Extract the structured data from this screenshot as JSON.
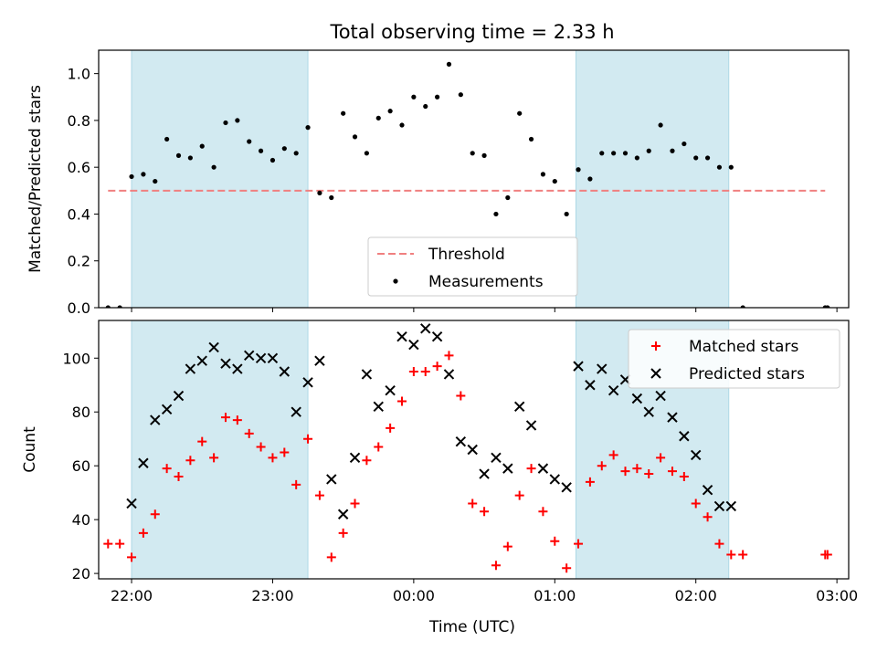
{
  "figure": {
    "title": "Total observing time = 2.33 h",
    "xlabel": "Time (UTC)"
  },
  "colors": {
    "shade": "#add8e6",
    "threshold": "#f08080",
    "measurements": "#000000",
    "matched": "#ff0000",
    "predicted": "#000000",
    "axes": "#000000"
  },
  "chart_data": [
    {
      "type": "scatter",
      "name": "ratio-panel",
      "ylabel": "Matched/Predicted stars",
      "xlabel": "",
      "xlim": [
        "21:46",
        "03:05"
      ],
      "ylim": [
        0,
        1.1
      ],
      "xticks": [
        "22:00",
        "23:00",
        "00:00",
        "01:00",
        "02:00",
        "03:00"
      ],
      "yticks": [
        "0.0",
        "0.2",
        "0.4",
        "0.6",
        "0.8",
        "1.0"
      ],
      "shaded_intervals": [
        [
          "22:00",
          "23:15"
        ],
        [
          "01:09",
          "02:14"
        ]
      ],
      "threshold": {
        "label": "Threshold",
        "x": [
          "21:50",
          "02:55"
        ],
        "y": 0.5
      },
      "legend": {
        "placement": "lower center",
        "entries": [
          "Threshold",
          "Measurements"
        ]
      },
      "series": [
        {
          "name": "Measurements",
          "x": [
            "21:50",
            "21:55",
            "22:00",
            "22:05",
            "22:10",
            "22:15",
            "22:20",
            "22:25",
            "22:30",
            "22:35",
            "22:40",
            "22:45",
            "22:50",
            "22:55",
            "23:00",
            "23:05",
            "23:10",
            "23:15",
            "23:20",
            "23:25",
            "23:30",
            "23:35",
            "23:40",
            "23:45",
            "23:50",
            "23:55",
            "00:00",
            "00:05",
            "00:10",
            "00:15",
            "00:20",
            "00:25",
            "00:30",
            "00:35",
            "00:40",
            "00:45",
            "00:50",
            "00:55",
            "01:00",
            "01:05",
            "01:10",
            "01:15",
            "01:20",
            "01:25",
            "01:30",
            "01:35",
            "01:40",
            "01:45",
            "01:50",
            "01:55",
            "02:00",
            "02:05",
            "02:10",
            "02:15",
            "02:20",
            "02:55",
            "02:56"
          ],
          "y": [
            0.0,
            0.0,
            0.56,
            0.57,
            0.54,
            0.72,
            0.65,
            0.64,
            0.69,
            0.6,
            0.79,
            0.8,
            0.71,
            0.67,
            0.63,
            0.68,
            0.66,
            0.77,
            0.49,
            0.47,
            0.83,
            0.73,
            0.66,
            0.81,
            0.84,
            0.78,
            0.9,
            0.86,
            0.9,
            1.04,
            0.91,
            0.66,
            0.65,
            0.4,
            0.47,
            0.83,
            0.72,
            0.57,
            0.54,
            0.4,
            0.59,
            0.55,
            0.66,
            0.66,
            0.66,
            0.64,
            0.67,
            0.78,
            0.67,
            0.7,
            0.64,
            0.64,
            0.6,
            0.6,
            0.0,
            0.0,
            0.0
          ]
        }
      ]
    },
    {
      "type": "scatter",
      "name": "count-panel",
      "ylabel": "Count",
      "xlabel": "Time (UTC)",
      "xlim": [
        "21:46",
        "03:05"
      ],
      "ylim": [
        18,
        114
      ],
      "xticks": [
        "22:00",
        "23:00",
        "00:00",
        "01:00",
        "02:00",
        "03:00"
      ],
      "yticks": [
        "20",
        "40",
        "60",
        "80",
        "100"
      ],
      "shaded_intervals": [
        [
          "22:00",
          "23:15"
        ],
        [
          "01:09",
          "02:14"
        ]
      ],
      "legend": {
        "placement": "upper right",
        "entries": [
          "Matched stars",
          "Predicted stars"
        ]
      },
      "series": [
        {
          "name": "Matched stars",
          "marker": "plus",
          "x": [
            "21:50",
            "21:55",
            "22:00",
            "22:05",
            "22:10",
            "22:15",
            "22:20",
            "22:25",
            "22:30",
            "22:35",
            "22:40",
            "22:45",
            "22:50",
            "22:55",
            "23:00",
            "23:05",
            "23:10",
            "23:15",
            "23:20",
            "23:25",
            "23:30",
            "23:35",
            "23:40",
            "23:45",
            "23:50",
            "23:55",
            "00:00",
            "00:05",
            "00:10",
            "00:15",
            "00:20",
            "00:25",
            "00:30",
            "00:35",
            "00:40",
            "00:45",
            "00:50",
            "00:55",
            "01:00",
            "01:05",
            "01:10",
            "01:15",
            "01:20",
            "01:25",
            "01:30",
            "01:35",
            "01:40",
            "01:45",
            "01:50",
            "01:55",
            "02:00",
            "02:05",
            "02:10",
            "02:15",
            "02:20",
            "02:55",
            "02:56"
          ],
          "y": [
            31,
            31,
            26,
            35,
            42,
            59,
            56,
            62,
            69,
            63,
            78,
            77,
            72,
            67,
            63,
            65,
            53,
            70,
            49,
            26,
            35,
            46,
            62,
            67,
            74,
            84,
            95,
            95,
            97,
            101,
            86,
            46,
            43,
            23,
            30,
            49,
            59,
            43,
            32,
            22,
            31,
            54,
            60,
            64,
            58,
            59,
            57,
            63,
            58,
            56,
            46,
            41,
            31,
            27,
            27,
            27,
            27
          ]
        },
        {
          "name": "Predicted stars",
          "marker": "x",
          "x": [
            "22:00",
            "22:05",
            "22:10",
            "22:15",
            "22:20",
            "22:25",
            "22:30",
            "22:35",
            "22:40",
            "22:45",
            "22:50",
            "22:55",
            "23:00",
            "23:05",
            "23:10",
            "23:15",
            "23:20",
            "23:25",
            "23:30",
            "23:35",
            "23:40",
            "23:45",
            "23:50",
            "23:55",
            "00:00",
            "00:05",
            "00:10",
            "00:15",
            "00:20",
            "00:25",
            "00:30",
            "00:35",
            "00:40",
            "00:45",
            "00:50",
            "00:55",
            "01:00",
            "01:05",
            "01:10",
            "01:15",
            "01:20",
            "01:25",
            "01:30",
            "01:35",
            "01:40",
            "01:45",
            "01:50",
            "01:55",
            "02:00",
            "02:05",
            "02:10",
            "02:15"
          ],
          "y": [
            46,
            61,
            77,
            81,
            86,
            96,
            99,
            104,
            98,
            96,
            101,
            100,
            100,
            95,
            80,
            91,
            99,
            55,
            42,
            63,
            94,
            82,
            88,
            108,
            105,
            111,
            108,
            94,
            69,
            66,
            57,
            63,
            59,
            82,
            75,
            59,
            55,
            52,
            97,
            90,
            96,
            88,
            92,
            85,
            80,
            86,
            78,
            71,
            64,
            51,
            45,
            45
          ]
        }
      ]
    }
  ]
}
